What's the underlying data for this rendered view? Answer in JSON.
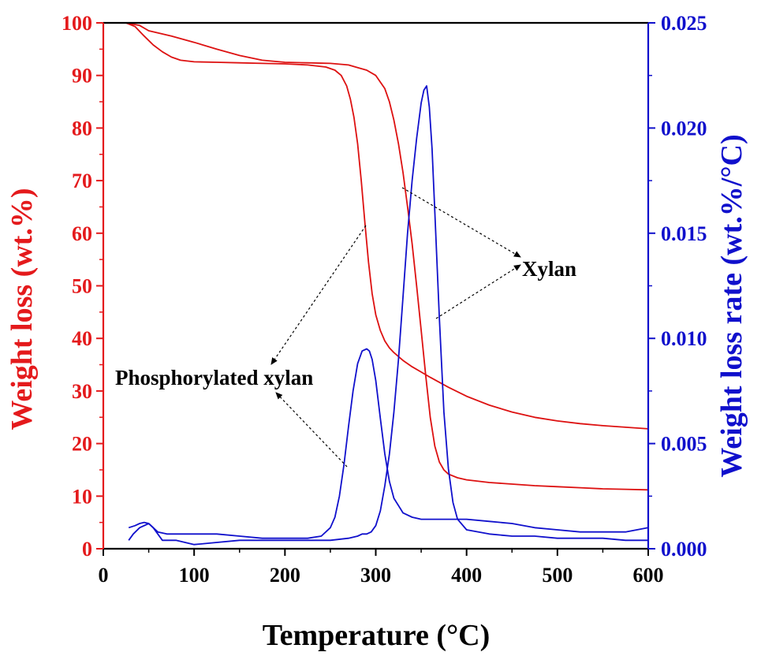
{
  "chart_data": {
    "type": "line",
    "title": "",
    "xlabel": "Temperature (°C)",
    "ylabel_left": "Weight loss (wt.%)",
    "ylabel_right": "Weight loss rate (wt.%/°C)",
    "xlim": [
      0,
      600
    ],
    "ylim_left": [
      0,
      100
    ],
    "ylim_right": [
      0,
      0.025
    ],
    "x_ticks": [
      "0",
      "100",
      "200",
      "300",
      "400",
      "500",
      "600"
    ],
    "y_left_ticks": [
      "0",
      "10",
      "20",
      "30",
      "40",
      "50",
      "60",
      "70",
      "80",
      "90",
      "100"
    ],
    "y_right_ticks": [
      "0.000",
      "0.005",
      "0.010",
      "0.015",
      "0.020",
      "0.025"
    ],
    "grid": false,
    "colors": {
      "left_axis": "#e41a1c",
      "right_axis": "#1010cc",
      "weight_line": "#dd1111",
      "rate_line": "#1010cc"
    },
    "annotations": [
      {
        "text": "Xylan",
        "x": 460,
        "y": 54
      },
      {
        "text": "Phosphorylated xylan",
        "x": 130,
        "y": 33
      }
    ],
    "series": [
      {
        "key": "tg_phos",
        "axis": "left",
        "x": [
          25,
          35,
          45,
          55,
          65,
          75,
          85,
          100,
          125,
          150,
          175,
          200,
          225,
          245,
          255,
          262,
          268,
          272,
          276,
          280,
          284,
          288,
          292,
          296,
          300,
          305,
          310,
          315,
          320,
          330,
          340,
          350,
          360,
          380,
          400,
          425,
          450,
          475,
          500,
          525,
          550,
          575,
          600
        ],
        "y": [
          100,
          99.3,
          97.5,
          95.8,
          94.5,
          93.5,
          92.9,
          92.6,
          92.5,
          92.4,
          92.3,
          92.2,
          92.0,
          91.6,
          91.0,
          90.0,
          88.0,
          85.5,
          82.0,
          77.0,
          70.0,
          62.0,
          54.5,
          48.5,
          44.5,
          41.5,
          39.5,
          38.2,
          37.3,
          35.8,
          34.6,
          33.6,
          32.6,
          30.7,
          29.0,
          27.3,
          26.0,
          25.0,
          24.3,
          23.8,
          23.4,
          23.1,
          22.8
        ]
      },
      {
        "key": "tg_xylan",
        "axis": "left",
        "x": [
          25,
          40,
          50,
          75,
          100,
          125,
          150,
          175,
          200,
          225,
          250,
          270,
          280,
          290,
          300,
          310,
          315,
          320,
          325,
          330,
          335,
          340,
          345,
          350,
          355,
          360,
          365,
          370,
          375,
          380,
          390,
          400,
          425,
          450,
          475,
          500,
          525,
          550,
          575,
          600
        ],
        "y": [
          100,
          99.5,
          98.5,
          97.5,
          96.3,
          95.0,
          93.8,
          92.9,
          92.5,
          92.4,
          92.3,
          92.0,
          91.5,
          91.0,
          90.0,
          87.5,
          85.0,
          81.5,
          77.0,
          71.5,
          65.0,
          58.0,
          50.0,
          41.5,
          33.0,
          25.0,
          19.5,
          16.5,
          15.0,
          14.2,
          13.5,
          13.1,
          12.6,
          12.3,
          12.0,
          11.8,
          11.6,
          11.4,
          11.3,
          11.2
        ]
      },
      {
        "key": "dtg_phos",
        "axis": "right",
        "x": [
          28,
          35,
          40,
          45,
          50,
          55,
          60,
          70,
          80,
          100,
          125,
          150,
          175,
          200,
          225,
          240,
          250,
          255,
          260,
          265,
          270,
          275,
          280,
          285,
          290,
          293,
          296,
          300,
          305,
          310,
          315,
          320,
          330,
          340,
          350,
          360,
          380,
          400,
          425,
          450,
          475,
          500,
          525,
          550,
          575,
          600
        ],
        "y": [
          0.001,
          0.0011,
          0.0012,
          0.00125,
          0.0012,
          0.001,
          0.0008,
          0.0007,
          0.0007,
          0.0007,
          0.0007,
          0.0006,
          0.0005,
          0.0005,
          0.0005,
          0.0006,
          0.001,
          0.0015,
          0.0025,
          0.004,
          0.0058,
          0.0075,
          0.0088,
          0.0094,
          0.0095,
          0.0094,
          0.009,
          0.008,
          0.0062,
          0.0045,
          0.0032,
          0.0024,
          0.0017,
          0.0015,
          0.0014,
          0.0014,
          0.0014,
          0.0014,
          0.0013,
          0.0012,
          0.001,
          0.0009,
          0.0008,
          0.0008,
          0.0008,
          0.001
        ]
      },
      {
        "key": "dtg_xylan",
        "axis": "right",
        "x": [
          28,
          33,
          40,
          50,
          55,
          65,
          80,
          100,
          125,
          150,
          175,
          200,
          225,
          250,
          270,
          280,
          285,
          290,
          295,
          300,
          305,
          310,
          315,
          320,
          325,
          330,
          335,
          340,
          345,
          350,
          353,
          356,
          359,
          362,
          365,
          370,
          375,
          380,
          385,
          390,
          400,
          425,
          450,
          475,
          500,
          525,
          550,
          575,
          600
        ],
        "y": [
          0.0004,
          0.0007,
          0.001,
          0.0012,
          0.001,
          0.0004,
          0.0004,
          0.0002,
          0.0003,
          0.0004,
          0.0004,
          0.0004,
          0.0004,
          0.0004,
          0.0005,
          0.0006,
          0.0007,
          0.0007,
          0.0008,
          0.0011,
          0.0018,
          0.003,
          0.0045,
          0.0065,
          0.009,
          0.012,
          0.015,
          0.0175,
          0.0195,
          0.0212,
          0.0218,
          0.022,
          0.021,
          0.019,
          0.016,
          0.011,
          0.0065,
          0.0038,
          0.0022,
          0.0014,
          0.0009,
          0.0007,
          0.0006,
          0.0006,
          0.0005,
          0.0005,
          0.0005,
          0.0004,
          0.0004
        ]
      }
    ]
  }
}
